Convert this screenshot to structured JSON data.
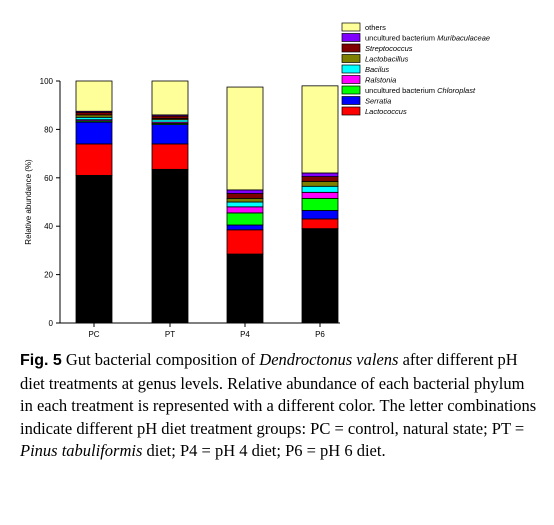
{
  "chart_data": {
    "type": "bar",
    "stacked": true,
    "categories": [
      "PC",
      "PT",
      "P4",
      "P6"
    ],
    "ylabel": "Relative abundance (%)",
    "ylim": [
      0,
      100
    ],
    "yticks": [
      0,
      20,
      40,
      60,
      80,
      100
    ],
    "legend_position": "top-right",
    "series": [
      {
        "name": "Lactococcus",
        "italic": true,
        "color": "#ff0000",
        "values": [
          13,
          10.5,
          10,
          4
        ]
      },
      {
        "name": "Serratia",
        "italic": true,
        "color": "#0000ff",
        "values": [
          9,
          8,
          2,
          3.5
        ]
      },
      {
        "name": "uncultured bacterium Chloroplast",
        "italic_part": "Chloroplast",
        "color": "#00ff00",
        "values": [
          0.5,
          0.5,
          5,
          5
        ]
      },
      {
        "name": "Ralstonia",
        "italic": true,
        "color": "#ff00ff",
        "values": [
          0.5,
          0.5,
          2.5,
          2.5
        ]
      },
      {
        "name": "Bacilus",
        "italic": true,
        "color": "#00ffff",
        "values": [
          1,
          1,
          2,
          2.5
        ]
      },
      {
        "name": "Lactobacillus",
        "italic": true,
        "color": "#808000",
        "values": [
          1,
          0.5,
          1.5,
          2
        ]
      },
      {
        "name": "Streptococcus",
        "italic": true,
        "color": "#800000",
        "values": [
          1,
          1,
          2,
          2
        ]
      },
      {
        "name": "uncultured bacterium Muribaculaceae",
        "italic_part": "Muribaculaceae",
        "color": "#8000ff",
        "values": [
          0.5,
          0.5,
          1.5,
          1.5
        ]
      },
      {
        "name": "others",
        "color": "#ffff99",
        "values": [
          12.5,
          14,
          42.5,
          36
        ]
      }
    ],
    "base_series": {
      "color": "#000000",
      "values": [
        61,
        63.5,
        28.5,
        39
      ]
    }
  },
  "caption": {
    "label": "Fig. 5",
    "text_1": "  Gut bacterial composition of ",
    "species": "Dendroctonus valens",
    "text_2": " after different pH diet treatments at genus levels. Relative abundance of each bacterial phylum in each treatment is represented with a different color. The letter combinations indicate different pH diet treatment groups: PC = control, natural state; PT = ",
    "pinus": "Pinus tabuliformis",
    "text_3": " diet; P4 = pH 4 diet; P6 = pH 6 diet."
  }
}
